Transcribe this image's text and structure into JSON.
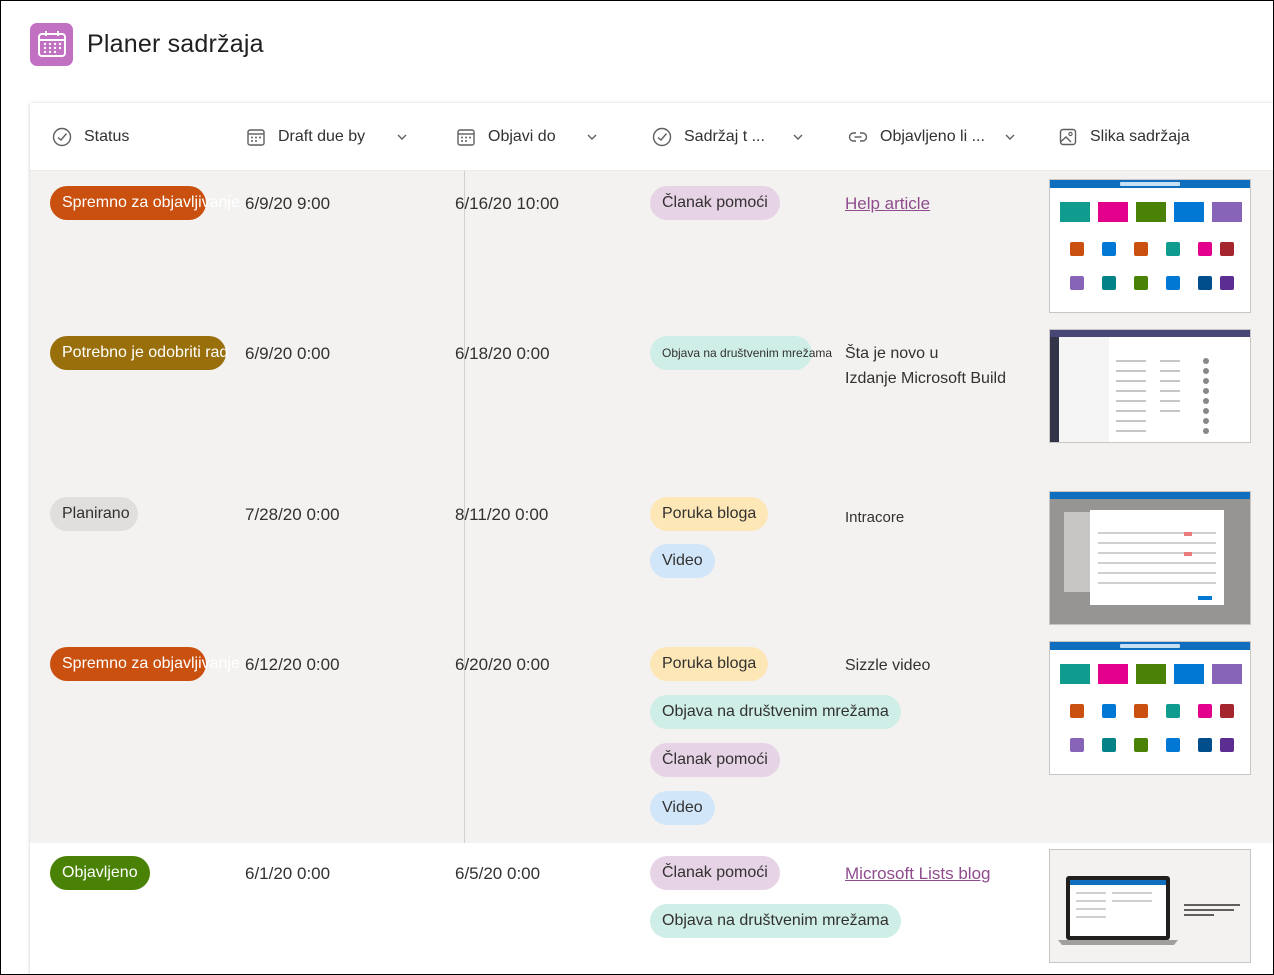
{
  "app": {
    "title": "Planer sadržaja",
    "icon": "calendar-icon",
    "icon_color": "#c170c2"
  },
  "columns": [
    {
      "label": "Status",
      "icon": "status-check-icon"
    },
    {
      "label": "Draft due by",
      "icon": "calendar-icon"
    },
    {
      "label": "Objavi do",
      "icon": "calendar-icon"
    },
    {
      "label": "Sadržaj t ...",
      "icon": "status-check-icon"
    },
    {
      "label": "Objavljeno li ...",
      "icon": "link-icon"
    },
    {
      "label": "Slika sadržaja",
      "icon": "image-icon"
    }
  ],
  "colors": {
    "ready": "#ca5010",
    "approve": "#986f0b",
    "planned": "#e1dfdd",
    "published": "#498205",
    "tag_help": "#e7d3e6",
    "tag_social": "#cfeee7",
    "tag_blog": "#fde7b7",
    "tag_video": "#d1e6f8"
  },
  "rows": [
    {
      "status": "Spremno za objavljivanje",
      "draft_due": "6/9/20 9:00",
      "publish_by": "6/16/20 10:00",
      "tags": [
        "Članak pomoći"
      ],
      "published_link": "Help article"
    },
    {
      "status": "Potrebno je odobriti rad",
      "draft_due": "6/9/20 0:00",
      "publish_by": "6/18/20 0:00",
      "tags": [
        "Objava na društvenim mrežama"
      ],
      "published_line1": "Šta je novo u",
      "published_line2": "Izdanje Microsoft Build"
    },
    {
      "status": "Planirano",
      "draft_due": "7/28/20 0:00",
      "publish_by": "8/11/20 0:00",
      "tags": [
        "Poruka bloga",
        "Video"
      ],
      "published_text": "Intracore"
    },
    {
      "status": "Spremno za objavljivanje",
      "draft_due": "6/12/20 0:00",
      "publish_by": "6/20/20 0:00",
      "tags": [
        "Poruka bloga",
        "Objava na društvenim mrežama",
        "Članak pomoći",
        "Video"
      ],
      "published_text": "Sizzle video"
    },
    {
      "status": "Objavljeno",
      "draft_due": "6/1/20 0:00",
      "publish_by": "6/5/20 0:00",
      "tags": [
        "Članak pomoći",
        "Objava na društvenim mrežama"
      ],
      "published_link": "Microsoft Lists blog"
    }
  ]
}
